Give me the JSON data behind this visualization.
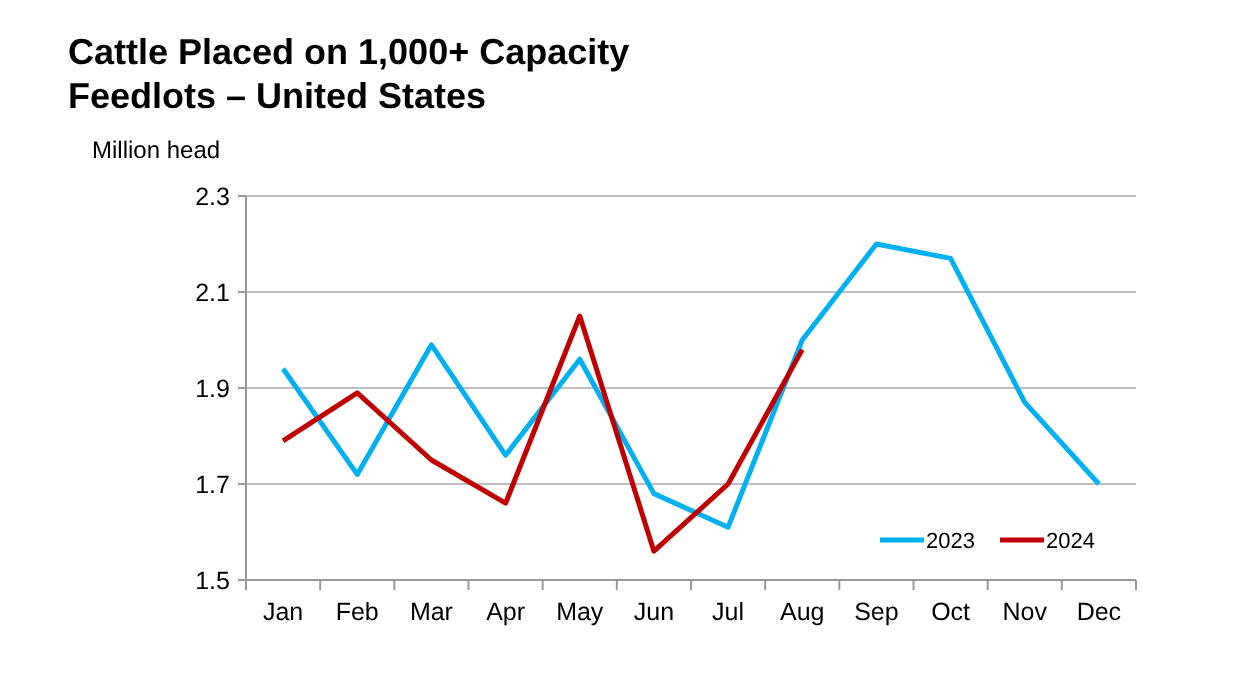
{
  "chart_data": {
    "type": "line",
    "title": "Cattle Placed on 1,000+ Capacity\nFeedlots – United States",
    "ylabel": "Million head",
    "categories": [
      "Jan",
      "Feb",
      "Mar",
      "Apr",
      "May",
      "Jun",
      "Jul",
      "Aug",
      "Sep",
      "Oct",
      "Nov",
      "Dec"
    ],
    "series": [
      {
        "name": "2023",
        "color": "#00b0f0",
        "values": [
          1.94,
          1.72,
          1.99,
          1.76,
          1.96,
          1.68,
          1.61,
          2.0,
          2.2,
          2.17,
          1.87,
          1.7
        ]
      },
      {
        "name": "2024",
        "color": "#c00000",
        "values": [
          1.79,
          1.89,
          1.75,
          1.66,
          2.05,
          1.56,
          1.7,
          1.98,
          null,
          null,
          null,
          null
        ]
      }
    ],
    "ylim": [
      1.5,
      2.3
    ],
    "yticks": [
      1.5,
      1.7,
      1.9,
      2.1,
      2.3
    ],
    "grid": "y",
    "legend": "bottom right",
    "marker": "none",
    "line_style": "solid"
  }
}
